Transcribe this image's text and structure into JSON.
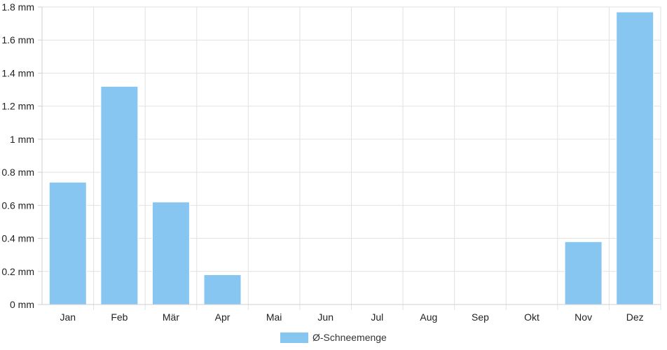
{
  "chart_data": {
    "type": "bar",
    "categories": [
      "Jan",
      "Feb",
      "Mär",
      "Apr",
      "Mai",
      "Jun",
      "Jul",
      "Aug",
      "Sep",
      "Okt",
      "Nov",
      "Dez"
    ],
    "series": [
      {
        "name": "Ø-Schneemenge",
        "values": [
          0.74,
          1.32,
          0.62,
          0.18,
          0,
          0,
          0,
          0,
          0,
          0,
          0.38,
          1.77
        ],
        "color": "#88c6f2"
      }
    ],
    "y_ticks": [
      "0 mm",
      "0.2 mm",
      "0.4 mm",
      "0.6 mm",
      "0.8 mm",
      "1 mm",
      "1.2 mm",
      "1.4 mm",
      "1.6 mm",
      "1.8 mm"
    ],
    "ylim": [
      0,
      1.8
    ],
    "grid": true,
    "legend_position": "bottom-center"
  }
}
